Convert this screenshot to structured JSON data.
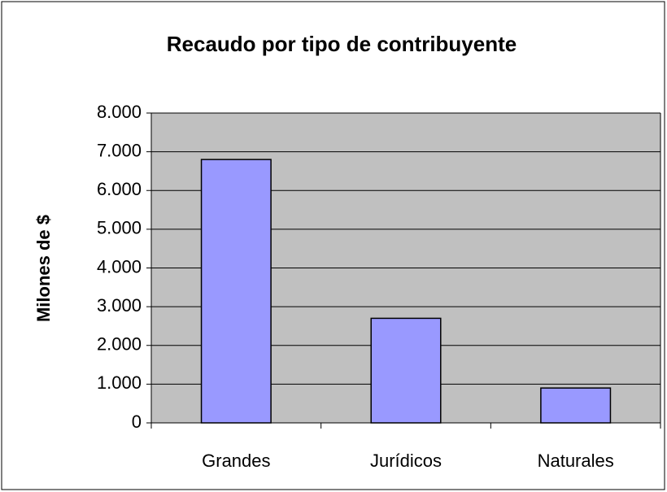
{
  "chart_data": {
    "type": "bar",
    "title": "Recaudo por tipo de contribuyente",
    "y_label": "Milones de $",
    "categories": [
      "Grandes",
      "Jurídicos",
      "Naturales"
    ],
    "values": [
      6800,
      2700,
      900
    ],
    "color": "#9999ff",
    "ylim": [
      0,
      8000
    ],
    "yticks": [
      0,
      {
        "value": 1000,
        "label": "1.000"
      },
      {
        "value": 2000,
        "label": "2.000"
      },
      {
        "value": 3000,
        "label": "3.000"
      },
      {
        "value": 4000,
        "label": "4.000"
      },
      {
        "value": 5000,
        "label": "5.000"
      },
      {
        "value": 6000,
        "label": "6.000"
      },
      {
        "value": 7000,
        "label": "7.000"
      },
      {
        "value": 8000,
        "label": "8.000"
      }
    ],
    "grid": true
  }
}
